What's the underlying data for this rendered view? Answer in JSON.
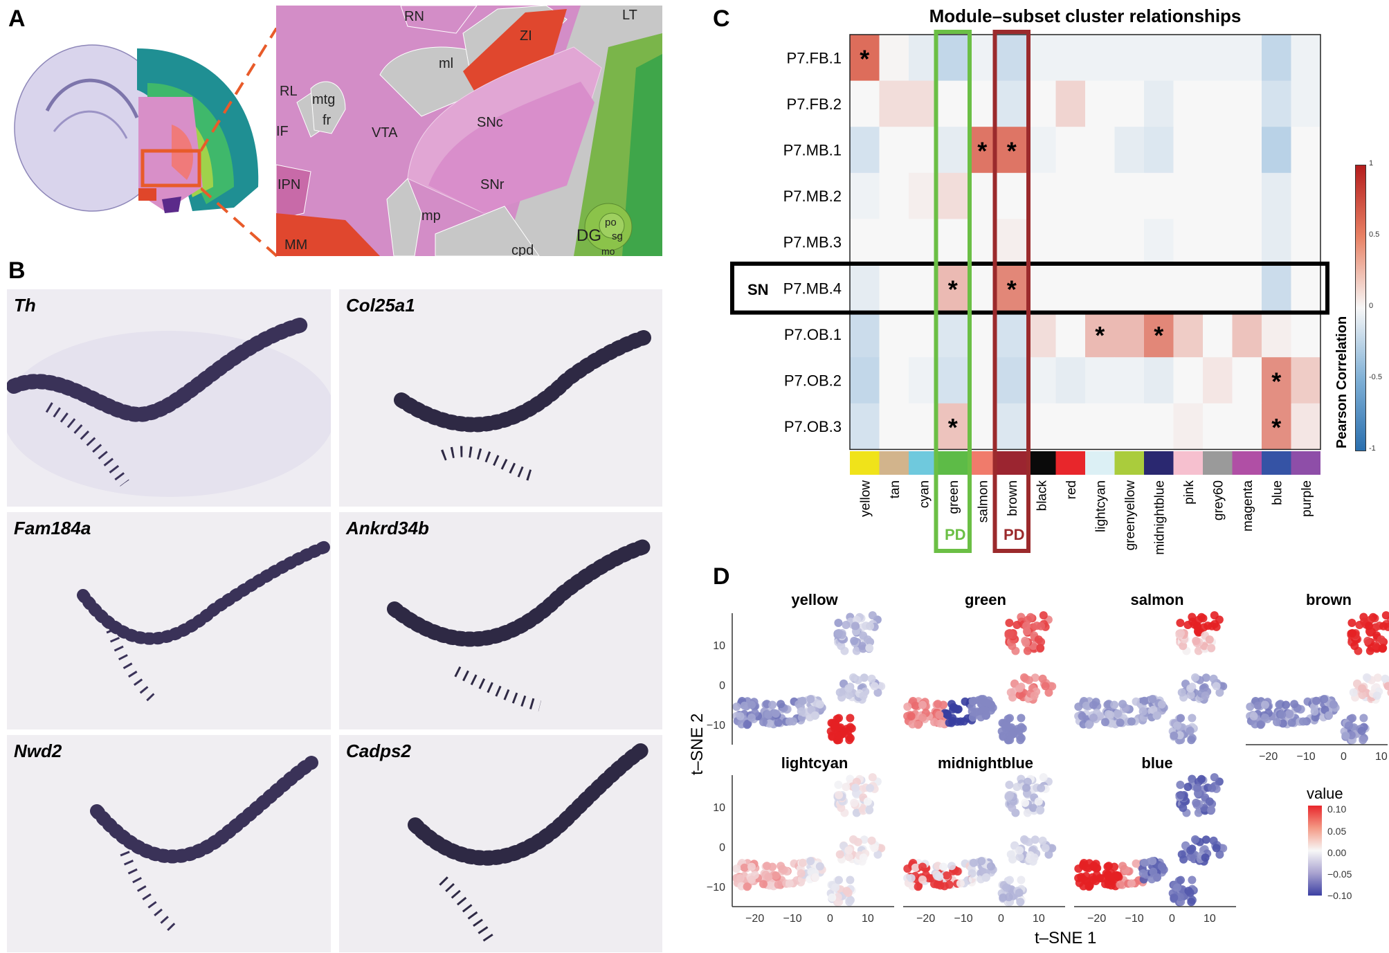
{
  "panels": {
    "a": {
      "letter": "A",
      "atlas_regions": [
        "RN",
        "ml",
        "ZI",
        "LT",
        "RL",
        "mtg",
        "fr",
        "IF",
        "VTA",
        "SNc",
        "SNr",
        "IPN",
        "mp",
        "MM",
        "cpd",
        "DG",
        "po",
        "sg",
        "mo"
      ]
    },
    "b": {
      "letter": "B",
      "genes": [
        "Th",
        "Col25a1",
        "Fam184a",
        "Ankrd34b",
        "Nwd2",
        "Cadps2"
      ]
    },
    "c": {
      "letter": "C"
    },
    "d": {
      "letter": "D"
    }
  },
  "heatmap": {
    "title": "Module–subset cluster relationships",
    "rows": [
      "P7.FB.1",
      "P7.FB.2",
      "P7.MB.1",
      "P7.MB.2",
      "P7.MB.3",
      "P7.MB.4",
      "P7.OB.1",
      "P7.OB.2",
      "P7.OB.3"
    ],
    "columns": [
      "yellow",
      "tan",
      "cyan",
      "green",
      "salmon",
      "brown",
      "black",
      "red",
      "lightcyan",
      "greenyellow",
      "midnightblue",
      "pink",
      "grey60",
      "magenta",
      "blue",
      "purple"
    ],
    "column_colors": [
      "#f0e31a",
      "#d2b48c",
      "#6fc9dd",
      "#5dbb47",
      "#f07b6b",
      "#9b2530",
      "#0a0a0a",
      "#e8262b",
      "#dcf0f5",
      "#aacc3c",
      "#2a2870",
      "#f6c0cf",
      "#9a9a9a",
      "#b04fa5",
      "#3553a5",
      "#8e4ea8"
    ],
    "highlight": {
      "row_label": "SN",
      "row": "P7.MB.4",
      "columns": [
        {
          "column": "green",
          "label": "PD",
          "color": "#6bbf45"
        },
        {
          "column": "brown",
          "label": "PD",
          "color": "#9b2a2c"
        }
      ]
    },
    "values": [
      [
        0.8,
        0.02,
        -0.1,
        -0.3,
        -0.05,
        -0.25,
        -0.05,
        -0.05,
        -0.05,
        -0.05,
        -0.05,
        -0.05,
        -0.05,
        -0.05,
        -0.3,
        -0.05
      ],
      [
        0.0,
        0.15,
        0.15,
        0.0,
        0.0,
        -0.15,
        0.0,
        0.2,
        0.0,
        0.0,
        -0.1,
        0.0,
        0.0,
        0.0,
        -0.2,
        -0.05
      ],
      [
        -0.2,
        0.0,
        0.0,
        -0.1,
        0.75,
        0.75,
        -0.05,
        0.0,
        0.0,
        -0.1,
        -0.15,
        0.0,
        0.0,
        0.0,
        -0.35,
        0.0
      ],
      [
        -0.05,
        0.0,
        0.05,
        0.15,
        0.0,
        0.0,
        0.0,
        0.0,
        0.0,
        0.0,
        0.0,
        0.0,
        0.0,
        0.0,
        -0.1,
        0.0
      ],
      [
        0.0,
        0.0,
        0.0,
        0.0,
        0.0,
        0.05,
        0.0,
        0.0,
        0.0,
        0.0,
        -0.05,
        0.0,
        0.0,
        0.0,
        -0.1,
        0.0
      ],
      [
        -0.1,
        0.0,
        0.0,
        0.35,
        0.0,
        0.65,
        0.0,
        0.0,
        0.0,
        0.0,
        0.0,
        0.0,
        0.0,
        0.0,
        -0.25,
        0.0
      ],
      [
        -0.25,
        0.0,
        0.0,
        -0.15,
        0.0,
        -0.2,
        0.15,
        0.0,
        0.35,
        0.35,
        0.65,
        0.25,
        0.0,
        0.3,
        0.05,
        0.0
      ],
      [
        -0.3,
        0.0,
        -0.05,
        -0.2,
        0.0,
        -0.25,
        -0.05,
        -0.1,
        -0.05,
        -0.05,
        -0.1,
        0.0,
        0.1,
        0.0,
        0.6,
        0.25
      ],
      [
        -0.2,
        0.0,
        0.0,
        0.3,
        0.0,
        -0.15,
        0.0,
        0.0,
        0.0,
        0.0,
        0.0,
        0.05,
        0.0,
        0.0,
        0.6,
        0.1
      ]
    ],
    "significant": [
      [
        0,
        0
      ],
      [
        2,
        4
      ],
      [
        2,
        5
      ],
      [
        5,
        3
      ],
      [
        5,
        5
      ],
      [
        6,
        8
      ],
      [
        6,
        10
      ],
      [
        7,
        14
      ],
      [
        8,
        3
      ],
      [
        8,
        14
      ]
    ],
    "legend": {
      "title": "Pearson Correlation",
      "ticks": [
        "1",
        "0.5",
        "0",
        "-0.5",
        "-1"
      ]
    }
  },
  "tsne": {
    "xlabel": "t–SNE 1",
    "ylabel": "t–SNE 2",
    "xticks": [
      "−20",
      "−10",
      "0",
      "10"
    ],
    "yticks": [
      "10",
      "0",
      "−10"
    ],
    "xtick_values": [
      -20,
      -10,
      0,
      10
    ],
    "ytick_values": [
      10,
      0,
      -10
    ],
    "facets": [
      "yellow",
      "green",
      "salmon",
      "brown",
      "lightcyan",
      "midnightblue",
      "blue"
    ],
    "legend": {
      "title": "value",
      "ticks": [
        "0.10",
        "0.05",
        "0.00",
        "−0.05",
        "−0.10"
      ]
    }
  }
}
